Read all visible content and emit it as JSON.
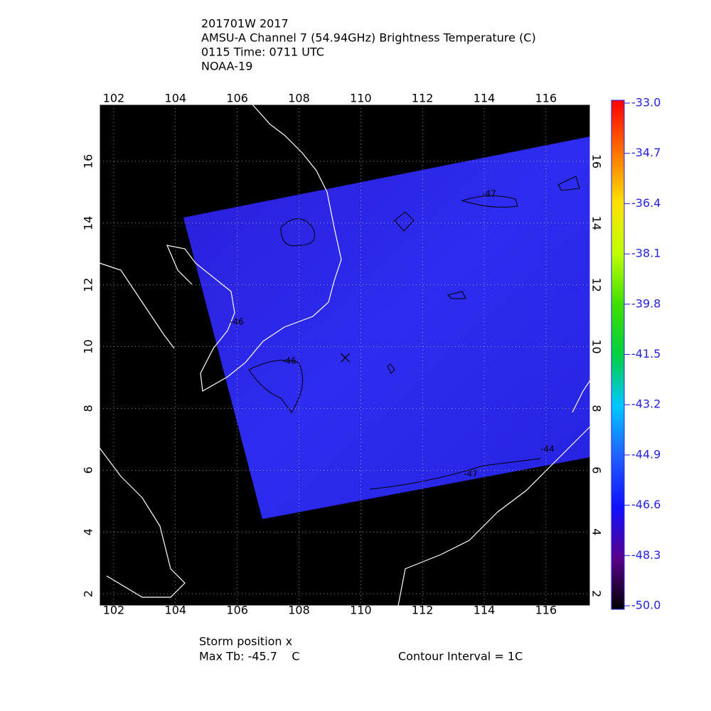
{
  "title": [
    "201701W 2017",
    "AMSU-A Channel 7 (54.94GHz) Brightness Temperature (C)",
    "0115 Time: 0711 UTC",
    "NOAA-19"
  ],
  "map": {
    "xlim": [
      101.54,
      117.43
    ],
    "ylim": [
      1.61,
      17.84
    ],
    "xticks": [
      102,
      104,
      106,
      108,
      110,
      112,
      114,
      116
    ],
    "yticks": [
      2,
      4,
      6,
      8,
      10,
      12,
      14,
      16
    ],
    "storm": {
      "lon": 109.5,
      "lat": 9.64
    },
    "contour_labels": [
      "-47",
      "-46",
      "-46",
      "-47",
      "-44"
    ]
  },
  "colorbar": {
    "lim": [
      -50,
      -33
    ],
    "ticks": [
      {
        "value": -33,
        "label": "-33.0"
      },
      {
        "value": -34.7,
        "label": "-34.7"
      },
      {
        "value": -36.4,
        "label": "-36.4"
      },
      {
        "value": -38.1,
        "label": "-38.1"
      },
      {
        "value": -39.8,
        "label": "-39.8"
      },
      {
        "value": -41.5,
        "label": "-41.5"
      },
      {
        "value": -43.2,
        "label": "-43.2"
      },
      {
        "value": -44.9,
        "label": "-44.9"
      },
      {
        "value": -46.6,
        "label": "-46.6"
      },
      {
        "value": -48.3,
        "label": "-48.3"
      },
      {
        "value": -50,
        "label": "-50.0"
      }
    ],
    "colors": [
      "#000000",
      "#5a008a",
      "#1010ff",
      "#2060ff",
      "#00c8ff",
      "#00d040",
      "#40e000",
      "#c0ff00",
      "#ffe000",
      "#ff7000",
      "#ff0000"
    ]
  },
  "footer": {
    "storm": "Storm position x",
    "max_tb": "Max Tb: -45.7    C",
    "contour": "Contour Interval = 1C"
  }
}
